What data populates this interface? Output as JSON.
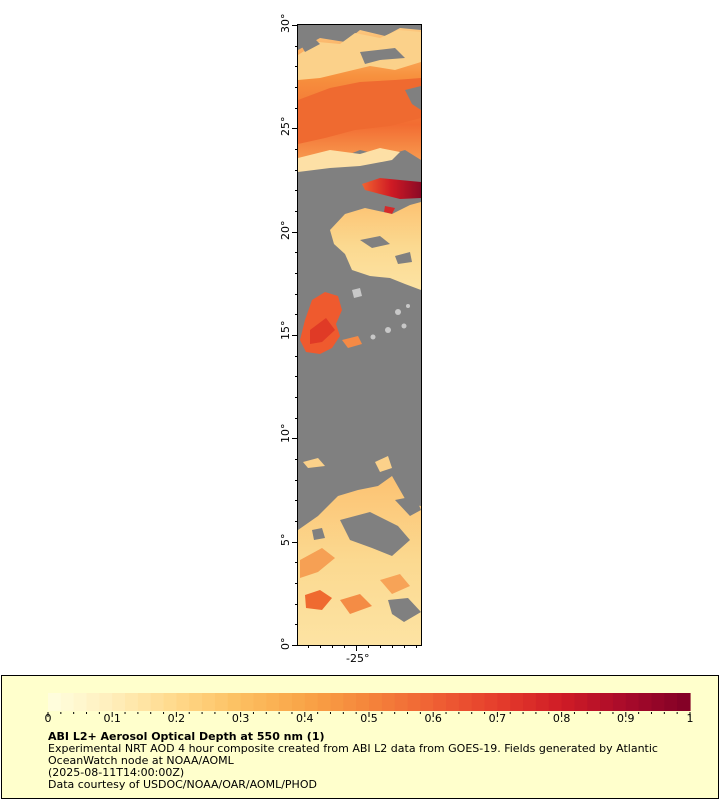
{
  "map": {
    "lat_labels": [
      "0°",
      "5°",
      "10°",
      "15°",
      "20°",
      "25°",
      "30°"
    ],
    "lon_labels": [
      "-25°"
    ],
    "lat_range": [
      0,
      30
    ],
    "lon_label_value": -25,
    "no_data_color": "#808080",
    "land_mask_color": "#c8c8c8"
  },
  "legend": {
    "title": "ABI L2+ Aerosol Optical Depth at 550 nm (1)",
    "line1": "Experimental NRT AOD 4 hour composite created from ABI L2 data from GOES-19. Fields generated by Atlantic",
    "line2": "OceanWatch node at NOAA/AOML",
    "line3": "(2025-08-11T14:00:00Z)",
    "line4": "Data courtesy of USDOC/NOAA/OAR/AOML/PHOD",
    "tick_labels": [
      "0",
      "0.1",
      "0.2",
      "0.3",
      "0.4",
      "0.5",
      "0.6",
      "0.7",
      "0.8",
      "0.9",
      "1"
    ],
    "range": [
      0,
      1
    ],
    "colormap": [
      "#ffffe0",
      "#ffeebb",
      "#ffd98a",
      "#fcbf60",
      "#f9a447",
      "#f5853b",
      "#ef6134",
      "#e53d2c",
      "#d01c26",
      "#a80a2a",
      "#800026"
    ]
  }
}
